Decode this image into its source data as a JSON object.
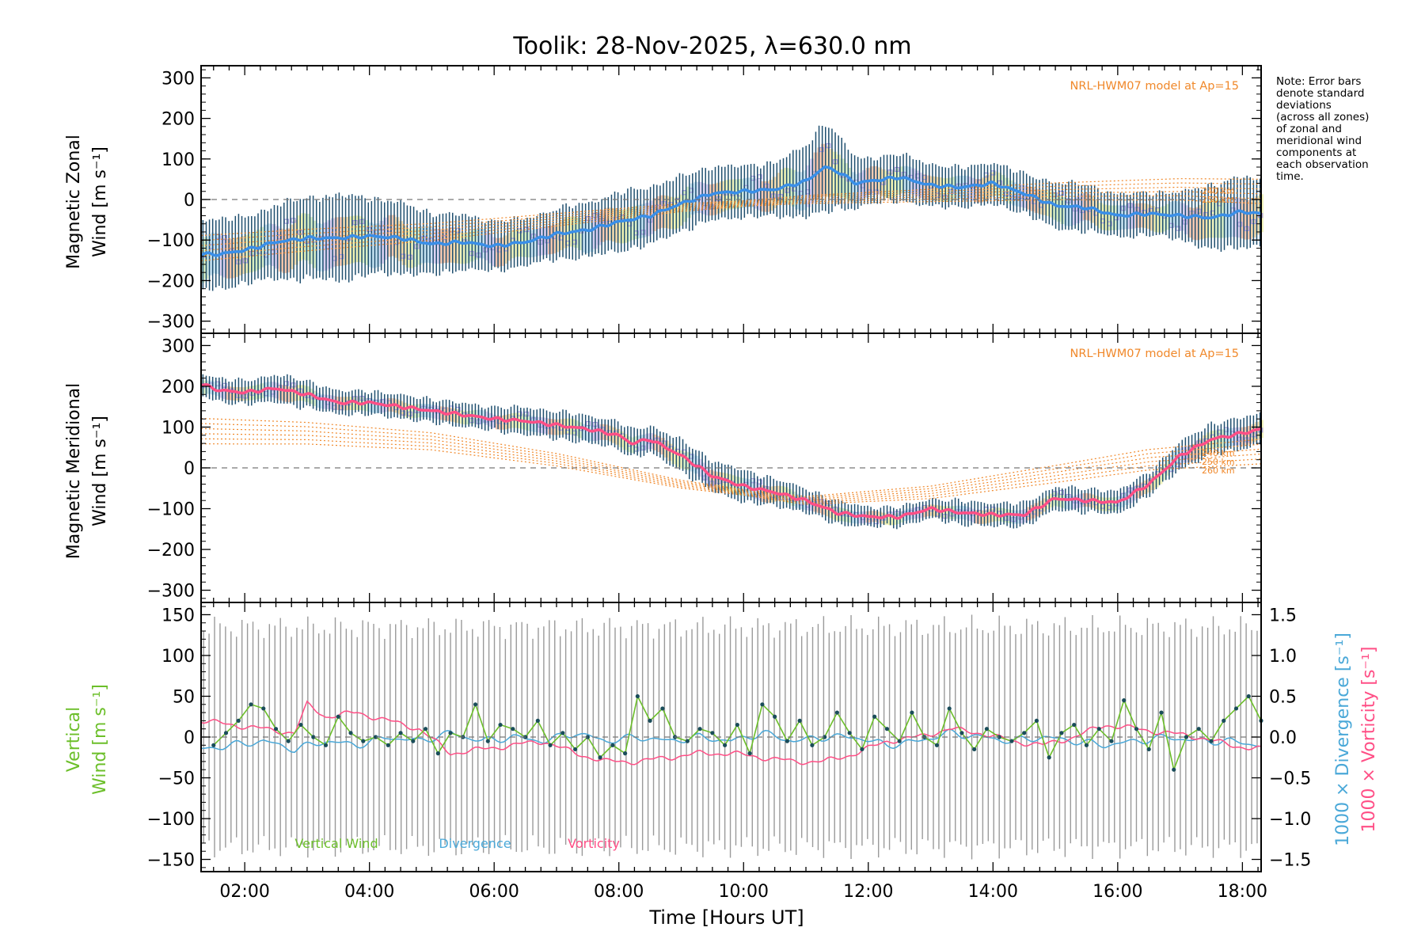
{
  "title": "Toolik: 28-Nov-2025, λ=630.0 nm",
  "note": "Note: Error bars\ndenote standard\ndeviations\n(across all zones)\nof zonal and\nmeridional wind\ncomponents at\neach observation\ntime.",
  "x_axis": {
    "label": "Time [Hours UT]",
    "range_hours": [
      1.3,
      18.3
    ],
    "ticks": [
      {
        "v": 2,
        "label": "02:00"
      },
      {
        "v": 4,
        "label": "04:00"
      },
      {
        "v": 6,
        "label": "06:00"
      },
      {
        "v": 8,
        "label": "08:00"
      },
      {
        "v": 10,
        "label": "10:00"
      },
      {
        "v": 12,
        "label": "12:00"
      },
      {
        "v": 14,
        "label": "14:00"
      },
      {
        "v": 16,
        "label": "16:00"
      },
      {
        "v": 18,
        "label": "18:00"
      }
    ]
  },
  "colors": {
    "zonal": "#3a8fe8",
    "meridional": "#ff4f86",
    "error_bar": "#1f4f6f",
    "model": "#f0882a",
    "vertical": "#6cbf2a",
    "divergence": "#4aa8d8",
    "vorticity": "#ff4f86",
    "vz_error": "#9a9a9a"
  },
  "chart_data": [
    {
      "type": "line",
      "panel": "zonal",
      "ylabel_line1": "Magnetic Zonal",
      "ylabel_line2": "Wind [m s⁻¹]",
      "ylim": [
        -330,
        330
      ],
      "yticks": [
        300,
        200,
        100,
        0,
        -100,
        -200,
        -300
      ],
      "model_label": "NRL-HWM07 model at Ap=15",
      "model_height_labels": [
        "240 km",
        "250 km"
      ],
      "series": [
        {
          "name": "Zonal wind",
          "x": [
            1.3,
            1.6,
            2.0,
            2.5,
            3.0,
            3.5,
            4.0,
            4.5,
            5.0,
            5.5,
            6.0,
            6.5,
            7.0,
            7.5,
            8.0,
            8.5,
            9.0,
            9.5,
            10.0,
            10.5,
            11.0,
            11.3,
            11.5,
            11.8,
            12.0,
            12.5,
            13.0,
            13.5,
            14.0,
            14.5,
            15.0,
            15.5,
            16.0,
            16.5,
            17.0,
            17.5,
            18.0,
            18.3
          ],
          "values": [
            -135,
            -135,
            -125,
            -105,
            -95,
            -95,
            -90,
            -95,
            -110,
            -105,
            -115,
            -105,
            -85,
            -75,
            -55,
            -40,
            -10,
            15,
            20,
            25,
            45,
            80,
            70,
            40,
            45,
            55,
            35,
            30,
            40,
            15,
            -15,
            -20,
            -40,
            -35,
            -40,
            -45,
            -30,
            -35
          ],
          "std": [
            95,
            90,
            85,
            95,
            105,
            110,
            100,
            90,
            80,
            70,
            65,
            60,
            65,
            70,
            75,
            75,
            70,
            70,
            65,
            70,
            90,
            120,
            95,
            65,
            60,
            60,
            55,
            50,
            55,
            50,
            60,
            60,
            55,
            55,
            60,
            85,
            90,
            85
          ]
        },
        {
          "name": "HWM07 model",
          "x": [
            1.3,
            3.0,
            5.0,
            7.0,
            9.0,
            11.0,
            13.0,
            15.0,
            17.0,
            18.3
          ],
          "values": [
            -120,
            -100,
            -80,
            -50,
            -20,
            0,
            10,
            20,
            25,
            20
          ],
          "spread": 20
        }
      ]
    },
    {
      "type": "line",
      "panel": "meridional",
      "ylabel_line1": "Magnetic Meridional",
      "ylabel_line2": "Wind [m s⁻¹]",
      "ylim": [
        -330,
        330
      ],
      "yticks": [
        300,
        200,
        100,
        0,
        -100,
        -200,
        -300
      ],
      "model_label": "NRL-HWM07 model at Ap=15",
      "model_height_labels": [
        "240 km",
        "250 km",
        "260 km"
      ],
      "series": [
        {
          "name": "Meridional wind",
          "x": [
            1.3,
            1.6,
            2.0,
            2.5,
            3.0,
            3.5,
            4.0,
            4.5,
            5.0,
            5.5,
            6.0,
            6.5,
            7.0,
            7.5,
            8.0,
            8.2,
            8.5,
            9.0,
            9.5,
            10.0,
            10.5,
            11.0,
            11.5,
            12.0,
            12.5,
            13.0,
            13.5,
            14.0,
            14.5,
            15.0,
            15.5,
            16.0,
            16.5,
            17.0,
            17.5,
            18.0,
            18.3
          ],
          "values": [
            205,
            190,
            185,
            195,
            180,
            160,
            160,
            150,
            140,
            130,
            120,
            115,
            105,
            95,
            80,
            60,
            70,
            30,
            -20,
            -45,
            -60,
            -80,
            -110,
            -120,
            -120,
            -100,
            -110,
            -115,
            -115,
            -75,
            -80,
            -85,
            -40,
            30,
            70,
            85,
            95
          ],
          "std": [
            30,
            30,
            30,
            35,
            35,
            30,
            30,
            30,
            30,
            30,
            30,
            35,
            35,
            35,
            35,
            35,
            35,
            40,
            40,
            40,
            35,
            30,
            30,
            25,
            25,
            25,
            30,
            30,
            30,
            30,
            30,
            30,
            30,
            35,
            40,
            40,
            40
          ]
        },
        {
          "name": "HWM07 model",
          "x": [
            1.3,
            3.0,
            5.0,
            7.0,
            9.0,
            11.0,
            13.0,
            15.0,
            16.5,
            18.3
          ],
          "values": [
            90,
            85,
            65,
            20,
            -40,
            -80,
            -60,
            -15,
            20,
            40
          ],
          "spread": 20
        }
      ]
    },
    {
      "type": "line",
      "panel": "vertical",
      "ylabel_line1": "Vertical",
      "ylabel_line2": "Wind [m s⁻¹]",
      "y2label_div": "1000 × Divergence [s⁻¹]",
      "y2label_vort": "1000 × Vorticity [s⁻¹]",
      "ylim": [
        -165,
        165
      ],
      "yticks": [
        150,
        100,
        50,
        0,
        -50,
        -100,
        -150
      ],
      "y2lim": [
        -1.65,
        1.65
      ],
      "y2ticks": [
        {
          "v": 1.5,
          "label": "1.5"
        },
        {
          "v": 1.0,
          "label": "1.0"
        },
        {
          "v": 0.5,
          "label": "0.5"
        },
        {
          "v": 0.0,
          "label": "0.0"
        },
        {
          "v": -0.5,
          "label": "−0.5"
        },
        {
          "v": -1.0,
          "label": "−1.0"
        },
        {
          "v": -1.5,
          "label": "−1.5"
        }
      ],
      "legend": [
        "Vertical Wind",
        "Divergence",
        "Vorticity"
      ],
      "series": [
        {
          "name": "Vertical Wind",
          "x": [
            1.5,
            1.7,
            1.9,
            2.1,
            2.3,
            2.5,
            2.7,
            2.9,
            3.1,
            3.3,
            3.5,
            3.7,
            3.9,
            4.1,
            4.3,
            4.5,
            4.7,
            4.9,
            5.1,
            5.3,
            5.5,
            5.7,
            5.9,
            6.1,
            6.3,
            6.5,
            6.7,
            6.9,
            7.1,
            7.3,
            7.5,
            7.7,
            7.9,
            8.1,
            8.3,
            8.5,
            8.7,
            8.9,
            9.1,
            9.3,
            9.5,
            9.7,
            9.9,
            10.1,
            10.3,
            10.5,
            10.7,
            10.9,
            11.1,
            11.3,
            11.5,
            11.7,
            11.9,
            12.1,
            12.3,
            12.5,
            12.7,
            12.9,
            13.1,
            13.3,
            13.5,
            13.7,
            13.9,
            14.1,
            14.3,
            14.5,
            14.7,
            14.9,
            15.1,
            15.3,
            15.5,
            15.7,
            15.9,
            16.1,
            16.3,
            16.5,
            16.7,
            16.9,
            17.1,
            17.3,
            17.5,
            17.7,
            17.9,
            18.1,
            18.3
          ],
          "values": [
            -10,
            5,
            20,
            40,
            35,
            10,
            -5,
            15,
            0,
            -10,
            25,
            5,
            -5,
            0,
            -10,
            5,
            -5,
            10,
            -20,
            5,
            0,
            40,
            -5,
            15,
            10,
            0,
            20,
            -10,
            5,
            -15,
            0,
            -25,
            -10,
            -20,
            50,
            20,
            35,
            0,
            -5,
            10,
            5,
            -10,
            15,
            -20,
            40,
            25,
            -5,
            20,
            -10,
            0,
            30,
            5,
            -15,
            25,
            10,
            -5,
            30,
            0,
            -10,
            35,
            5,
            -15,
            10,
            0,
            -5,
            5,
            20,
            -25,
            5,
            15,
            -10,
            10,
            -5,
            45,
            10,
            -15,
            30,
            -40,
            0,
            10,
            -5,
            20,
            35,
            50,
            20
          ],
          "err": 150
        },
        {
          "name": "Divergence",
          "x": [
            1.3,
            1.8,
            2.3,
            2.8,
            3.3,
            3.8,
            4.3,
            4.8,
            5.3,
            5.8,
            6.3,
            6.8,
            7.3,
            7.8,
            8.3,
            8.8,
            9.3,
            9.8,
            10.3,
            10.8,
            11.3,
            11.8,
            12.3,
            12.8,
            13.3,
            13.8,
            14.3,
            14.8,
            15.3,
            15.8,
            16.3,
            16.8,
            17.3,
            17.8,
            18.3
          ],
          "values": [
            -0.15,
            -0.1,
            -0.05,
            -0.15,
            -0.05,
            -0.1,
            0.0,
            -0.05,
            0.05,
            -0.05,
            0.0,
            -0.05,
            0.05,
            -0.05,
            0.0,
            -0.05,
            0.0,
            -0.05,
            0.05,
            -0.05,
            0.0,
            0.0,
            -0.1,
            -0.05,
            0.05,
            0.0,
            -0.05,
            0.0,
            -0.05,
            -0.1,
            -0.05,
            0.0,
            -0.05,
            -0.05,
            -0.1
          ]
        },
        {
          "name": "Vorticity",
          "x": [
            1.3,
            1.8,
            2.3,
            2.8,
            3.0,
            3.3,
            3.8,
            4.3,
            4.8,
            5.3,
            5.8,
            6.3,
            6.8,
            7.3,
            7.8,
            8.3,
            8.8,
            9.3,
            9.8,
            10.3,
            10.8,
            11.3,
            11.8,
            12.3,
            12.8,
            13.3,
            13.8,
            14.3,
            14.8,
            15.3,
            15.8,
            16.3,
            16.8,
            17.3,
            17.8,
            18.3
          ],
          "values": [
            0.2,
            0.15,
            0.1,
            0.05,
            0.4,
            0.25,
            0.3,
            0.2,
            0.1,
            -0.2,
            -0.15,
            -0.1,
            -0.05,
            -0.2,
            -0.3,
            -0.3,
            -0.25,
            -0.2,
            -0.2,
            -0.25,
            -0.3,
            -0.3,
            -0.2,
            -0.05,
            0.0,
            0.1,
            0.05,
            -0.05,
            -0.1,
            0.0,
            0.15,
            0.1,
            0.05,
            0.0,
            -0.1,
            -0.15
          ]
        }
      ]
    }
  ]
}
